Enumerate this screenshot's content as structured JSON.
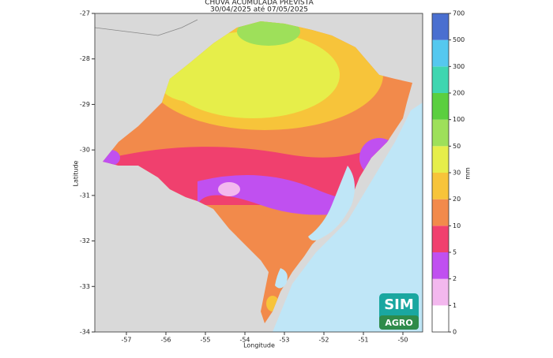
{
  "map": {
    "title": [
      "CHUVA ACUMULADA PREVISTA",
      "30/04/2025 até 07/05/2025"
    ],
    "x_label": "Longitude",
    "y_label": "Latitude",
    "xlim": [
      -57.8,
      -49.5
    ],
    "ylim": [
      -34,
      -27
    ],
    "xticks": [
      -57,
      -56,
      -55,
      -54,
      -53,
      -52,
      -51,
      -50
    ],
    "yticks": [
      -27,
      -28,
      -29,
      -30,
      -31,
      -32,
      -33,
      -34
    ],
    "colorbar": {
      "label": "mm",
      "ticks": [
        0,
        1,
        2,
        5,
        10,
        20,
        30,
        50,
        100,
        200,
        300,
        500,
        700
      ],
      "colors": [
        "#ffffff",
        "#f3b8ee",
        "#c050f0",
        "#f0406e",
        "#f28a4b",
        "#f7c43a",
        "#e6ee4a",
        "#9ee05a",
        "#5bcf3f",
        "#3fd6b0",
        "#55c8ef",
        "#4a6fd0",
        "#3c3fa0"
      ]
    },
    "logo": [
      "SIM",
      "AGRO"
    ]
  }
}
